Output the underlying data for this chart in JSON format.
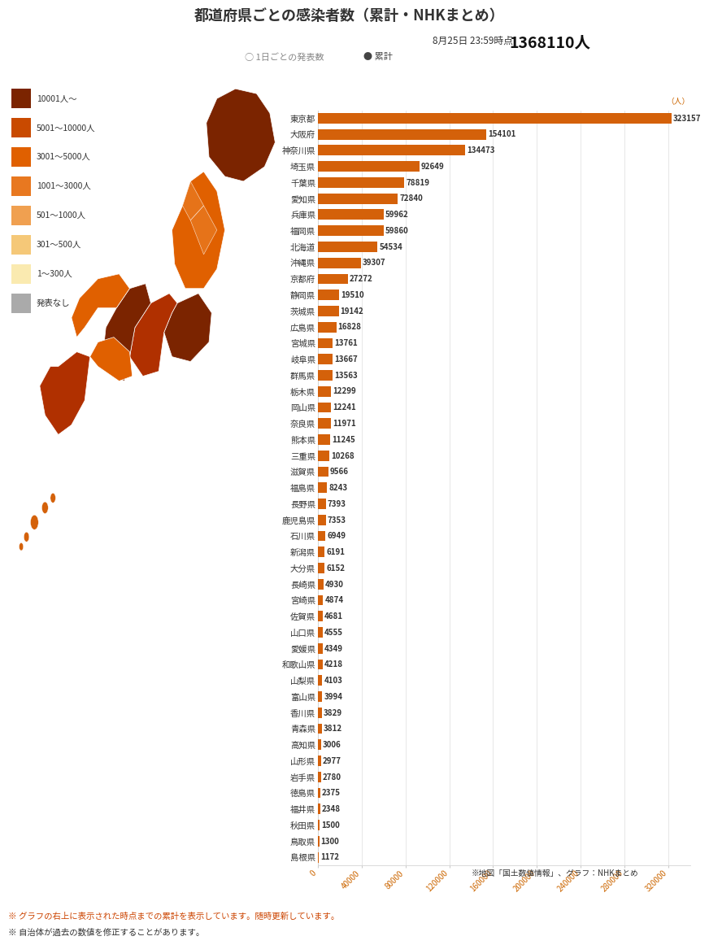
{
  "title": "都道府県ごとの感染者数（累計・NHKまとめ）",
  "subtitle_date": "8月25日 23:59時点",
  "subtitle_total": "1368110人",
  "radio_label1": "○ 1日ごとの発表数",
  "radio_label2": "● 累計",
  "bar_color": "#d4610a",
  "text_color": "#333333",
  "axis_color": "#cc6600",
  "background_color": "#ffffff",
  "footer1": "※ グラフの右上に表示された時点までの累計を表示しています。随時更新しています。",
  "footer2": "※ 自治体が過去の数値を修正することがあります。",
  "source_note": "※地図「国土数値情報」、グラフ：NHKまとめ",
  "legend_items": [
    {
      "label": "10001人～",
      "color": "#7b2400"
    },
    {
      "label": "5001～10000人",
      "color": "#c94a00"
    },
    {
      "label": "3001～5000人",
      "color": "#e06000"
    },
    {
      "label": "1001～3000人",
      "color": "#e87820"
    },
    {
      "label": "501～1000人",
      "color": "#f0a050"
    },
    {
      "label": "301～500人",
      "color": "#f5c878"
    },
    {
      "label": "1～300人",
      "color": "#faeab0"
    },
    {
      "label": "発表なし",
      "color": "#aaaaaa"
    }
  ],
  "xtick_step": 40000,
  "xmax": 340000,
  "prefectures": [
    {
      "name": "東京都",
      "value": 323157
    },
    {
      "name": "大阪府",
      "value": 154101
    },
    {
      "name": "神奈川県",
      "value": 134473
    },
    {
      "name": "埼玉県",
      "value": 92649
    },
    {
      "name": "千葉県",
      "value": 78819
    },
    {
      "name": "愛知県",
      "value": 72840
    },
    {
      "name": "兵庫県",
      "value": 59962
    },
    {
      "name": "福岡県",
      "value": 59860
    },
    {
      "name": "北海道",
      "value": 54534
    },
    {
      "name": "沖縄県",
      "value": 39307
    },
    {
      "name": "京都府",
      "value": 27272
    },
    {
      "name": "静岡県",
      "value": 19510
    },
    {
      "name": "茨城県",
      "value": 19142
    },
    {
      "name": "広島県",
      "value": 16828
    },
    {
      "name": "宮城県",
      "value": 13761
    },
    {
      "name": "岐阜県",
      "value": 13667
    },
    {
      "name": "群馬県",
      "value": 13563
    },
    {
      "name": "栃木県",
      "value": 12299
    },
    {
      "name": "岡山県",
      "value": 12241
    },
    {
      "name": "奈良県",
      "value": 11971
    },
    {
      "name": "熊本県",
      "value": 11245
    },
    {
      "name": "三重県",
      "value": 10268
    },
    {
      "name": "滋賀県",
      "value": 9566
    },
    {
      "name": "福島県",
      "value": 8243
    },
    {
      "name": "長野県",
      "value": 7393
    },
    {
      "name": "鹿児島県",
      "value": 7353
    },
    {
      "name": "石川県",
      "value": 6949
    },
    {
      "name": "新潟県",
      "value": 6191
    },
    {
      "name": "大分県",
      "value": 6152
    },
    {
      "name": "長崎県",
      "value": 4930
    },
    {
      "name": "宮崎県",
      "value": 4874
    },
    {
      "name": "佐賀県",
      "value": 4681
    },
    {
      "name": "山口県",
      "value": 4555
    },
    {
      "name": "愛媛県",
      "value": 4349
    },
    {
      "name": "和歌山県",
      "value": 4218
    },
    {
      "name": "山梨県",
      "value": 4103
    },
    {
      "name": "富山県",
      "value": 3994
    },
    {
      "name": "香川県",
      "value": 3829
    },
    {
      "name": "青森県",
      "value": 3812
    },
    {
      "name": "高知県",
      "value": 3006
    },
    {
      "name": "山形県",
      "value": 2977
    },
    {
      "name": "岩手県",
      "value": 2780
    },
    {
      "name": "徳島県",
      "value": 2375
    },
    {
      "name": "福井県",
      "value": 2348
    },
    {
      "name": "秋田県",
      "value": 1500
    },
    {
      "name": "鳥取県",
      "value": 1300
    },
    {
      "name": "島根県",
      "value": 1172
    }
  ]
}
